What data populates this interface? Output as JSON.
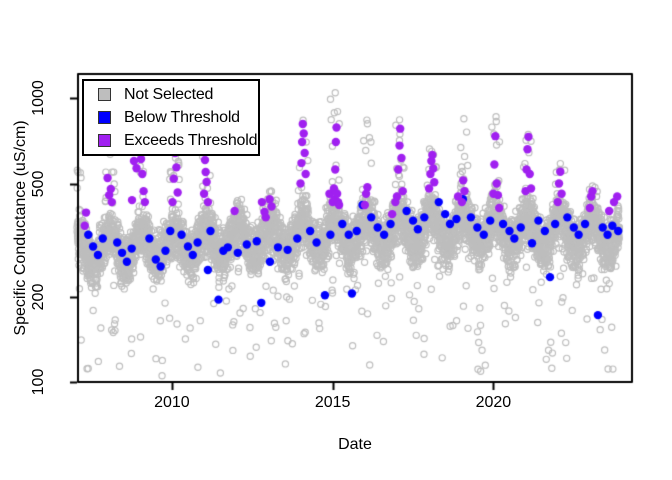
{
  "chart_data": {
    "type": "scatter",
    "title": "",
    "xlabel": "Date",
    "ylabel": "Specific Conductance (uS/cm)",
    "x_range": [
      2007.08,
      2024.31
    ],
    "y_range": [
      100,
      1215
    ],
    "y_scale": "log10",
    "grid": "off",
    "x_ticks": [
      {
        "value": 2010,
        "label": "2010"
      },
      {
        "value": 2015,
        "label": "2015"
      },
      {
        "value": 2020,
        "label": "2020"
      }
    ],
    "y_ticks": [
      {
        "value": 100,
        "label": "100"
      },
      {
        "value": 200,
        "label": "200"
      },
      {
        "value": 500,
        "label": "500"
      },
      {
        "value": 1000,
        "label": "1000"
      }
    ],
    "legend": {
      "position": "top-left",
      "entries": [
        {
          "label": "Not Selected",
          "color": "#BEBEBE",
          "border": "#333333",
          "marker": "square"
        },
        {
          "label": "Below Threshold",
          "color": "#0000FF",
          "border": "#333333",
          "marker": "square"
        },
        {
          "label": "Exceeds Threshold",
          "color": "#A020F0",
          "border": "#333333",
          "marker": "square"
        }
      ]
    },
    "series": [
      {
        "name": "Not Selected",
        "marker": "open-circle",
        "color": "#BEBEBE",
        "marker_radius_px": 3.1,
        "stroke_px": 1.2,
        "source": "generated-daily",
        "generator": {
          "seed": 20240117,
          "start": 2007.05,
          "end": 2023.92,
          "step_years": 0.00274,
          "baseline_log10": [
            [
              2007.0,
              2.46
            ],
            [
              2012.0,
              2.495
            ],
            [
              2018.0,
              2.538
            ],
            [
              2023.9,
              2.518
            ]
          ],
          "seasonal_amplitude_log10": 0.05,
          "seasonal_peak_frac": 0.06,
          "noise_sd_log10": 0.042,
          "winter_window": [
            0.93,
            0.23
          ],
          "spike_prob": 0.16,
          "spike_shape": 1.8,
          "dip_prob": 0.03,
          "dip_depth_log10": [
            0.08,
            0.38
          ],
          "deep_dip_prob": 0.002,
          "deep_dip_value_range": [
            110,
            128
          ],
          "winter_max": {
            "2007": 560,
            "2008": 640,
            "2009": 720,
            "2010": 660,
            "2011": 880,
            "2012": 400,
            "2013": 480,
            "2014": 840,
            "2015": 1060,
            "2016": 830,
            "2017": 850,
            "2018": 660,
            "2019": 860,
            "2020": 870,
            "2021": 750,
            "2022": 590,
            "2023": 500,
            "2024": 470
          }
        }
      },
      {
        "name": "Below Threshold",
        "marker": "filled-circle",
        "color": "#0000FF",
        "marker_radius_px": 4.2,
        "points": [
          [
            2007.4,
            330
          ],
          [
            2007.55,
            300
          ],
          [
            2007.7,
            280
          ],
          [
            2007.85,
            320
          ],
          [
            2008.3,
            310
          ],
          [
            2008.45,
            285
          ],
          [
            2008.6,
            265
          ],
          [
            2008.75,
            295
          ],
          [
            2009.3,
            320
          ],
          [
            2009.5,
            270
          ],
          [
            2009.65,
            255
          ],
          [
            2009.8,
            290
          ],
          [
            2009.95,
            340
          ],
          [
            2010.3,
            330
          ],
          [
            2010.5,
            300
          ],
          [
            2010.65,
            280
          ],
          [
            2010.8,
            310
          ],
          [
            2011.12,
            248
          ],
          [
            2011.2,
            340
          ],
          [
            2011.45,
            195
          ],
          [
            2011.6,
            290
          ],
          [
            2011.74,
            298
          ],
          [
            2012.05,
            285
          ],
          [
            2012.33,
            305
          ],
          [
            2012.64,
            313
          ],
          [
            2012.78,
            190
          ],
          [
            2013.05,
            265
          ],
          [
            2013.3,
            298
          ],
          [
            2013.6,
            292
          ],
          [
            2013.9,
            320
          ],
          [
            2014.3,
            340
          ],
          [
            2014.5,
            310
          ],
          [
            2014.76,
            202
          ],
          [
            2014.93,
            330
          ],
          [
            2015.3,
            360
          ],
          [
            2015.5,
            330
          ],
          [
            2015.6,
            205
          ],
          [
            2015.75,
            340
          ],
          [
            2015.93,
            420
          ],
          [
            2016.2,
            380
          ],
          [
            2016.4,
            350
          ],
          [
            2016.6,
            330
          ],
          [
            2016.8,
            360
          ],
          [
            2017.3,
            400
          ],
          [
            2017.5,
            370
          ],
          [
            2017.65,
            345
          ],
          [
            2017.85,
            380
          ],
          [
            2018.3,
            430
          ],
          [
            2018.5,
            390
          ],
          [
            2018.65,
            360
          ],
          [
            2018.85,
            375
          ],
          [
            2019.05,
            440
          ],
          [
            2019.3,
            380
          ],
          [
            2019.5,
            350
          ],
          [
            2019.7,
            330
          ],
          [
            2019.9,
            370
          ],
          [
            2020.3,
            360
          ],
          [
            2020.5,
            340
          ],
          [
            2020.65,
            320
          ],
          [
            2020.85,
            350
          ],
          [
            2021.2,
            308
          ],
          [
            2021.4,
            370
          ],
          [
            2021.6,
            340
          ],
          [
            2021.76,
            234
          ],
          [
            2021.92,
            360
          ],
          [
            2022.3,
            380
          ],
          [
            2022.5,
            350
          ],
          [
            2022.65,
            330
          ],
          [
            2022.85,
            360
          ],
          [
            2023.25,
            172
          ],
          [
            2023.4,
            350
          ],
          [
            2023.55,
            330
          ],
          [
            2023.7,
            355
          ],
          [
            2023.88,
            340
          ]
        ]
      },
      {
        "name": "Exceeds Threshold",
        "marker": "filled-circle",
        "color": "#A020F0",
        "marker_radius_px": 4.2,
        "points": [
          [
            2007.29,
            355
          ],
          [
            2007.33,
            395
          ],
          [
            2008.0,
            523
          ],
          [
            2008.05,
            455
          ],
          [
            2008.1,
            478
          ],
          [
            2008.13,
            430
          ],
          [
            2008.76,
            437
          ],
          [
            2008.82,
            600
          ],
          [
            2008.9,
            566
          ],
          [
            2009.04,
            610
          ],
          [
            2009.08,
            540
          ],
          [
            2009.12,
            470
          ],
          [
            2009.16,
            430
          ],
          [
            2010.02,
            430
          ],
          [
            2010.06,
            520
          ],
          [
            2010.1,
            640
          ],
          [
            2010.14,
            570
          ],
          [
            2010.18,
            465
          ],
          [
            2011.0,
            460
          ],
          [
            2011.03,
            605
          ],
          [
            2011.05,
            549
          ],
          [
            2011.08,
            506
          ],
          [
            2011.12,
            430
          ],
          [
            2011.95,
            400
          ],
          [
            2012.8,
            430
          ],
          [
            2012.88,
            397
          ],
          [
            2012.92,
            380
          ],
          [
            2013.04,
            440
          ],
          [
            2013.1,
            415
          ],
          [
            2014.0,
            500
          ],
          [
            2014.03,
            590
          ],
          [
            2014.05,
            700
          ],
          [
            2014.07,
            810
          ],
          [
            2014.1,
            750
          ],
          [
            2014.13,
            640
          ],
          [
            2014.16,
            540
          ],
          [
            2014.9,
            460
          ],
          [
            2015.0,
            430
          ],
          [
            2015.04,
            480
          ],
          [
            2015.06,
            440
          ],
          [
            2015.08,
            560
          ],
          [
            2015.1,
            700
          ],
          [
            2015.12,
            787
          ],
          [
            2015.14,
            460
          ],
          [
            2015.17,
            430
          ],
          [
            2015.2,
            420
          ],
          [
            2016.0,
            420
          ],
          [
            2016.04,
            460
          ],
          [
            2016.08,
            485
          ],
          [
            2016.85,
            390
          ],
          [
            2016.95,
            430
          ],
          [
            2017.0,
            450
          ],
          [
            2017.04,
            560
          ],
          [
            2017.08,
            680
          ],
          [
            2017.1,
            780
          ],
          [
            2017.14,
            615
          ],
          [
            2017.18,
            470
          ],
          [
            2018.0,
            480
          ],
          [
            2018.04,
            540
          ],
          [
            2018.07,
            600
          ],
          [
            2018.1,
            630
          ],
          [
            2018.13,
            565
          ],
          [
            2018.16,
            505
          ],
          [
            2018.9,
            450
          ],
          [
            2019.02,
            430
          ],
          [
            2019.06,
            513
          ],
          [
            2019.1,
            470
          ],
          [
            2020.0,
            460
          ],
          [
            2020.03,
            583
          ],
          [
            2020.06,
            734
          ],
          [
            2020.1,
            500
          ],
          [
            2020.14,
            455
          ],
          [
            2020.18,
            410
          ],
          [
            2021.0,
            470
          ],
          [
            2021.03,
            560
          ],
          [
            2021.06,
            660
          ],
          [
            2021.09,
            730
          ],
          [
            2021.13,
            540
          ],
          [
            2021.17,
            480
          ],
          [
            2022.0,
            430
          ],
          [
            2022.04,
            500
          ],
          [
            2022.08,
            550
          ],
          [
            2022.12,
            460
          ],
          [
            2023.0,
            410
          ],
          [
            2023.04,
            450
          ],
          [
            2023.08,
            470
          ],
          [
            2023.6,
            400
          ],
          [
            2023.75,
            430
          ],
          [
            2023.85,
            450
          ]
        ]
      }
    ],
    "colors": {
      "axis": "#000000",
      "plot_background": "#FFFFFF",
      "not_selected": "#BEBEBE",
      "below_threshold": "#0000FF",
      "exceeds_threshold": "#A020F0"
    }
  }
}
